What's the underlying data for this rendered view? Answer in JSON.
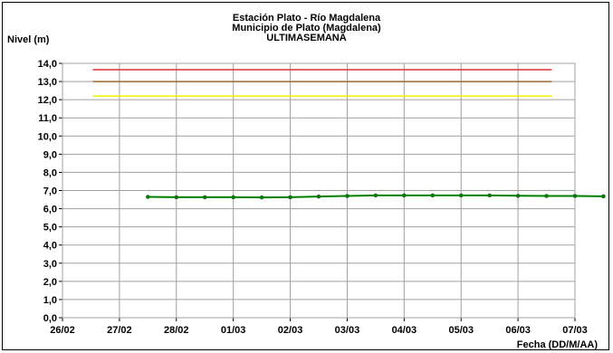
{
  "chart_data": {
    "type": "line",
    "title_lines": [
      "Estación Plato - Río Magdalena",
      "Municipio de Plato (Magdalena)",
      "ULTIMASEMANA"
    ],
    "ylabel": "Nivel (m)",
    "xlabel": "Fecha (DD/M/AA)",
    "ylim": [
      0,
      14
    ],
    "y_ticks": [
      "0,0",
      "1,0",
      "2,0",
      "3,0",
      "4,0",
      "5,0",
      "6,0",
      "7,0",
      "8,0",
      "9,0",
      "10,0",
      "11,0",
      "12,0",
      "13,0",
      "14,0"
    ],
    "xlim": [
      0,
      11
    ],
    "x_ticks": [
      "26/02",
      "27/02",
      "28/02",
      "01/03",
      "02/03",
      "03/03",
      "04/03",
      "05/03",
      "06/03",
      "07/03"
    ],
    "grid": true,
    "colors": {
      "series": "#008000",
      "red_line": "#E03030",
      "brown_line": "#9C6B30",
      "yellow_line": "#F0F000",
      "grid": "#A0A0A0"
    },
    "reference_lines": [
      {
        "value": 13.65,
        "color": "#E03030",
        "x_range": [
          0.65,
          10.5
        ]
      },
      {
        "value": 13.0,
        "color": "#9C6B30",
        "x_range": [
          0.65,
          10.5
        ]
      },
      {
        "value": 12.2,
        "color": "#F0F000",
        "x_range": [
          0.65,
          10.5
        ]
      }
    ],
    "series": [
      {
        "x": [
          1.5,
          2.0,
          2.5,
          3.0,
          3.5,
          4.0,
          4.5,
          5.0,
          5.5,
          6.0,
          6.5,
          7.0,
          7.5,
          8.0,
          8.5,
          9.0,
          9.5
        ],
        "values": [
          6.65,
          6.63,
          6.63,
          6.63,
          6.62,
          6.63,
          6.67,
          6.7,
          6.73,
          6.73,
          6.73,
          6.73,
          6.73,
          6.71,
          6.7,
          6.7,
          6.68
        ]
      }
    ]
  }
}
